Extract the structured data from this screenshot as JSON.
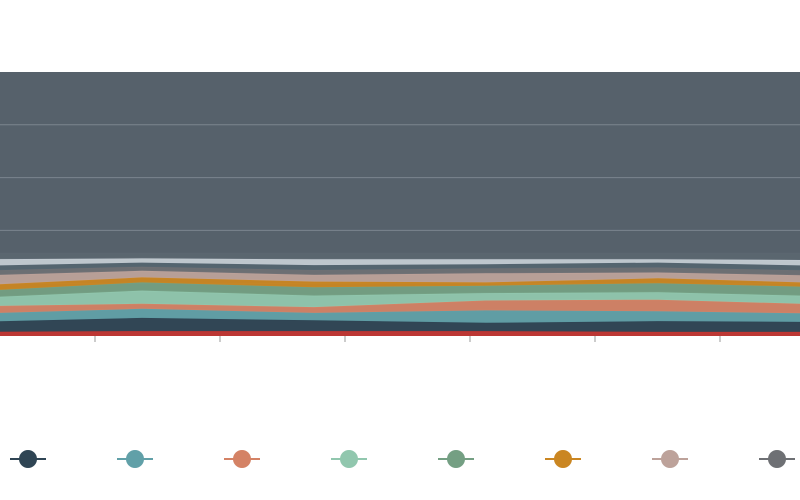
{
  "chart_data": {
    "type": "area",
    "stacked": true,
    "title": "",
    "xlabel": "",
    "ylabel": "",
    "categories": [
      "",
      "",
      "",
      "",
      "",
      ""
    ],
    "grid": true,
    "legend": "bottom",
    "background": "#56616b",
    "footer": "",
    "series": [
      {
        "color": "#c23531",
        "values": [
          0.05,
          0.06,
          0.06,
          0.06,
          0.05,
          0.05
        ]
      },
      {
        "color": "#2f4554",
        "values": [
          0.12,
          0.16,
          0.13,
          0.1,
          0.13,
          0.12
        ]
      },
      {
        "color": "#61a0a8",
        "values": [
          0.1,
          0.11,
          0.09,
          0.15,
          0.12,
          0.1
        ]
      },
      {
        "color": "#d48265",
        "values": [
          0.09,
          0.06,
          0.07,
          0.12,
          0.14,
          0.11
        ]
      },
      {
        "color": "#91c7ae",
        "values": [
          0.1,
          0.16,
          0.14,
          0.09,
          0.09,
          0.1
        ]
      },
      {
        "color": "#749f83",
        "values": [
          0.08,
          0.1,
          0.1,
          0.09,
          0.11,
          0.11
        ]
      },
      {
        "color": "#ca8622",
        "values": [
          0.07,
          0.06,
          0.07,
          0.04,
          0.06,
          0.05
        ]
      },
      {
        "color": "#bda29a",
        "values": [
          0.12,
          0.08,
          0.08,
          0.11,
          0.07,
          0.09
        ]
      },
      {
        "color": "#6e7074",
        "values": [
          0.06,
          0.05,
          0.06,
          0.06,
          0.06,
          0.06
        ]
      },
      {
        "color": "#546570",
        "values": [
          0.06,
          0.05,
          0.06,
          0.05,
          0.06,
          0.06
        ]
      },
      {
        "color": "#c4ccd3",
        "values": [
          0.08,
          0.05,
          0.07,
          0.06,
          0.04,
          0.07
        ]
      },
      {
        "color": "#5b6670",
        "values": [
          0.07,
          0.06,
          0.07,
          0.07,
          0.07,
          0.08
        ]
      }
    ],
    "legend_entries": [
      {
        "name": "",
        "color": "#2f4554"
      },
      {
        "name": "",
        "color": "#61a0a8"
      },
      {
        "name": "",
        "color": "#d48265"
      },
      {
        "name": "",
        "color": "#91c7ae"
      },
      {
        "name": "",
        "color": "#749f83"
      },
      {
        "name": "",
        "color": "#ca8622"
      },
      {
        "name": "",
        "color": "#bda29a"
      },
      {
        "name": "",
        "color": "#6e7074"
      }
    ]
  }
}
